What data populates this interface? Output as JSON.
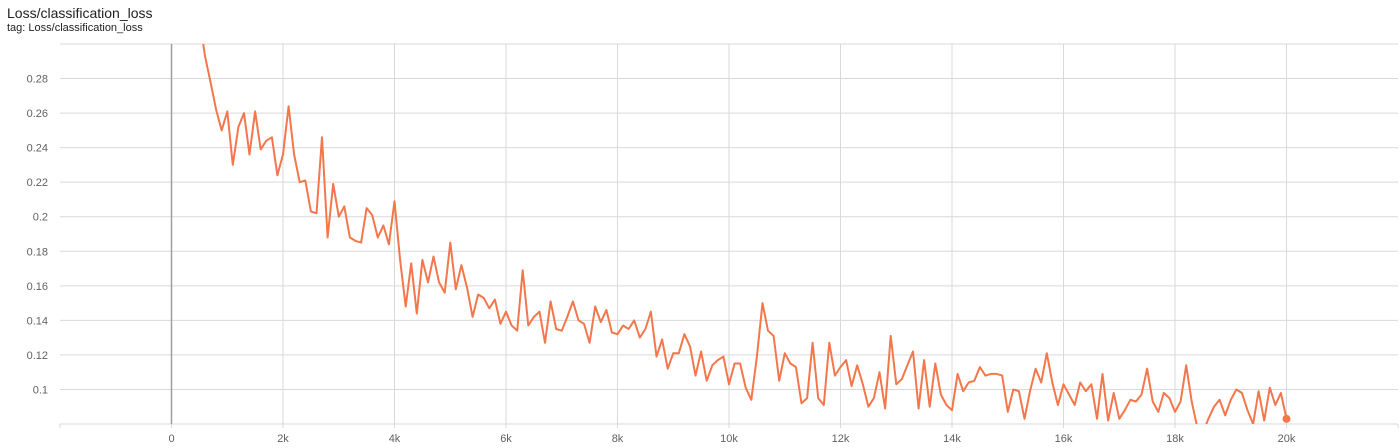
{
  "header": {
    "title": "Loss/classification_loss",
    "subtitle": "tag: Loss/classification_loss"
  },
  "colors": {
    "series": "#f4764b",
    "grid": "#d9d9d9",
    "zero_axis": "#9e9e9e"
  },
  "chart_data": {
    "type": "line",
    "title": "Loss/classification_loss",
    "xlabel": "",
    "ylabel": "",
    "xlim": [
      -2000,
      22000
    ],
    "ylim": [
      0.08,
      0.3
    ],
    "grid": true,
    "xticks": [
      0,
      2000,
      4000,
      6000,
      8000,
      10000,
      12000,
      14000,
      16000,
      18000,
      20000
    ],
    "xtick_labels": [
      "0",
      "2k",
      "4k",
      "6k",
      "8k",
      "10k",
      "12k",
      "14k",
      "16k",
      "18k",
      "20k"
    ],
    "yticks": [
      0.1,
      0.12,
      0.14,
      0.16,
      0.18,
      0.2,
      0.22,
      0.24,
      0.26,
      0.28
    ],
    "ytick_labels": [
      "0.1",
      "0.12",
      "0.14",
      "0.16",
      "0.18",
      "0.2",
      "0.22",
      "0.24",
      "0.26",
      "0.28"
    ],
    "series": [
      {
        "x": [
          500,
          600,
          700,
          800,
          900,
          1000,
          1100,
          1200,
          1300,
          1400,
          1500,
          1600,
          1700,
          1800,
          1900,
          2000,
          2100,
          2200,
          2300,
          2400,
          2500,
          2600,
          2700,
          2800,
          2900,
          3000,
          3100,
          3200,
          3300,
          3400,
          3500,
          3600,
          3700,
          3800,
          3900,
          4000,
          4100,
          4200,
          4300,
          4400,
          4500,
          4600,
          4700,
          4800,
          4900,
          5000,
          5100,
          5200,
          5300,
          5400,
          5500,
          5600,
          5700,
          5800,
          5900,
          6000,
          6100,
          6200,
          6300,
          6400,
          6500,
          6600,
          6700,
          6800,
          6900,
          7000,
          7100,
          7200,
          7300,
          7400,
          7500,
          7600,
          7700,
          7800,
          7900,
          8000,
          8100,
          8200,
          8300,
          8400,
          8500,
          8600,
          8700,
          8800,
          8900,
          9000,
          9100,
          9200,
          9300,
          9400,
          9500,
          9600,
          9700,
          9800,
          9900,
          10000,
          10100,
          10200,
          10300,
          10400,
          10500,
          10600,
          10700,
          10800,
          10900,
          11000,
          11100,
          11200,
          11300,
          11400,
          11500,
          11600,
          11700,
          11800,
          11900,
          12000,
          12100,
          12200,
          12300,
          12400,
          12500,
          12600,
          12700,
          12800,
          12900,
          13000,
          13100,
          13200,
          13300,
          13400,
          13500,
          13600,
          13700,
          13800,
          13900,
          14000,
          14100,
          14200,
          14300,
          14400,
          14500,
          14600,
          14700,
          14800,
          14900,
          15000,
          15100,
          15200,
          15300,
          15400,
          15500,
          15600,
          15700,
          15800,
          15900,
          16000,
          16100,
          16200,
          16300,
          16400,
          16500,
          16600,
          16700,
          16800,
          16900,
          17000,
          17100,
          17200,
          17300,
          17400,
          17500,
          17600,
          17700,
          17800,
          17900,
          18000,
          18100,
          18200,
          18300,
          18400,
          18500,
          18600,
          18700,
          18800,
          18900,
          19000,
          19100,
          19200,
          19300,
          19400,
          19500,
          19600,
          19700,
          19800,
          19900,
          20000
        ],
        "y": [
          0.315,
          0.293,
          0.278,
          0.262,
          0.25,
          0.261,
          0.23,
          0.252,
          0.26,
          0.236,
          0.261,
          0.239,
          0.244,
          0.246,
          0.224,
          0.236,
          0.264,
          0.236,
          0.22,
          0.221,
          0.203,
          0.202,
          0.246,
          0.188,
          0.219,
          0.2,
          0.206,
          0.188,
          0.186,
          0.185,
          0.205,
          0.201,
          0.188,
          0.195,
          0.184,
          0.209,
          0.175,
          0.148,
          0.173,
          0.144,
          0.175,
          0.162,
          0.177,
          0.162,
          0.156,
          0.185,
          0.158,
          0.172,
          0.159,
          0.142,
          0.155,
          0.153,
          0.147,
          0.152,
          0.138,
          0.145,
          0.137,
          0.134,
          0.169,
          0.137,
          0.142,
          0.145,
          0.127,
          0.151,
          0.135,
          0.134,
          0.142,
          0.151,
          0.14,
          0.138,
          0.127,
          0.148,
          0.139,
          0.146,
          0.133,
          0.132,
          0.137,
          0.135,
          0.14,
          0.13,
          0.135,
          0.145,
          0.119,
          0.129,
          0.112,
          0.121,
          0.121,
          0.132,
          0.125,
          0.108,
          0.122,
          0.105,
          0.114,
          0.117,
          0.119,
          0.103,
          0.115,
          0.115,
          0.101,
          0.094,
          0.119,
          0.15,
          0.134,
          0.131,
          0.105,
          0.121,
          0.115,
          0.113,
          0.092,
          0.095,
          0.127,
          0.095,
          0.091,
          0.127,
          0.108,
          0.113,
          0.117,
          0.102,
          0.114,
          0.103,
          0.09,
          0.095,
          0.11,
          0.089,
          0.131,
          0.103,
          0.106,
          0.114,
          0.122,
          0.089,
          0.117,
          0.09,
          0.115,
          0.097,
          0.091,
          0.088,
          0.109,
          0.099,
          0.104,
          0.105,
          0.113,
          0.108,
          0.109,
          0.109,
          0.108,
          0.087,
          0.1,
          0.099,
          0.083,
          0.099,
          0.112,
          0.104,
          0.121,
          0.104,
          0.091,
          0.103,
          0.097,
          0.091,
          0.104,
          0.099,
          0.103,
          0.083,
          0.109,
          0.082,
          0.098,
          0.083,
          0.088,
          0.094,
          0.093,
          0.097,
          0.112,
          0.093,
          0.087,
          0.098,
          0.095,
          0.087,
          0.093,
          0.114,
          0.093,
          0.078,
          0.075,
          0.083,
          0.09,
          0.094,
          0.085,
          0.094,
          0.1,
          0.098,
          0.088,
          0.08,
          0.099,
          0.082,
          0.101,
          0.091,
          0.098,
          0.083
        ]
      }
    ]
  }
}
